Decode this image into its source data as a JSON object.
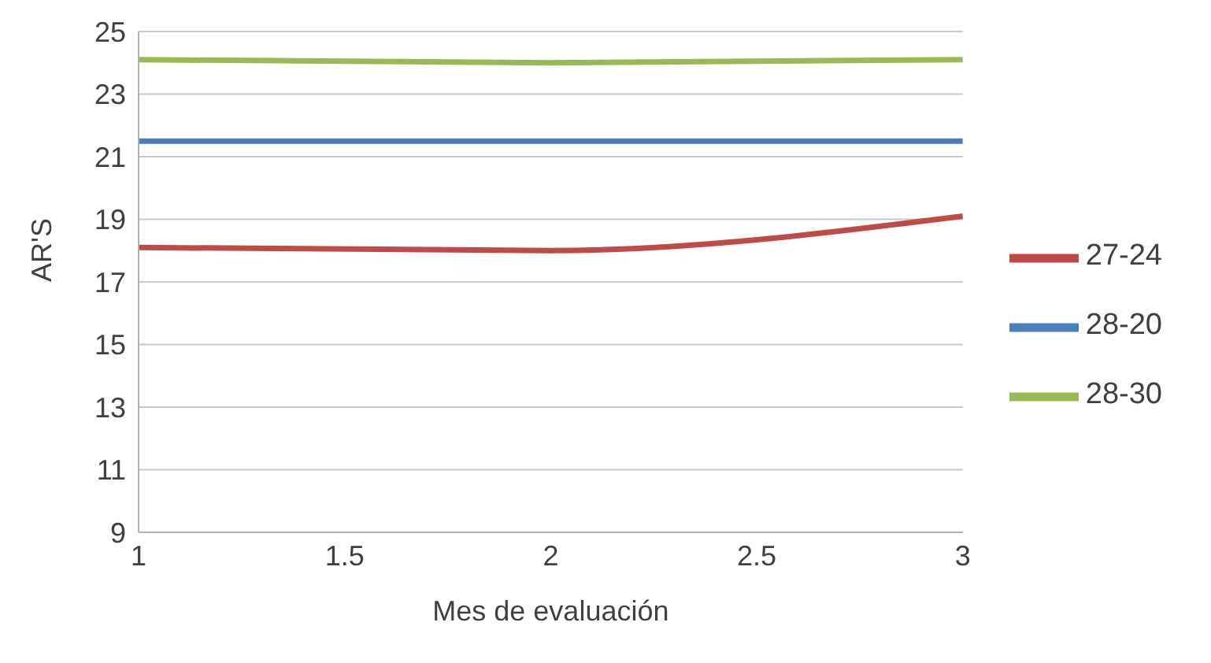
{
  "chart_data": {
    "type": "line",
    "xlabel": "Mes de evaluación",
    "ylabel": "AR'S",
    "x": [
      1,
      2,
      3
    ],
    "series": [
      {
        "name": "28-20",
        "color": "#4a7ebb",
        "values": [
          21.5,
          21.5,
          21.5
        ]
      },
      {
        "name": "27-24",
        "color": "#be4b48",
        "values": [
          18.1,
          18.0,
          19.1
        ]
      },
      {
        "name": "28-30",
        "color": "#98b954",
        "values": [
          24.1,
          24.0,
          24.1
        ]
      }
    ],
    "xlim": [
      1,
      3
    ],
    "xticks": [
      1,
      1.5,
      2,
      2.5,
      3
    ],
    "ylim": [
      9,
      25
    ],
    "yticks": [
      9,
      11,
      13,
      15,
      17,
      19,
      21,
      23,
      25
    ],
    "grid": "y",
    "legend": "right",
    "marker": "none",
    "line_style": "solid"
  }
}
